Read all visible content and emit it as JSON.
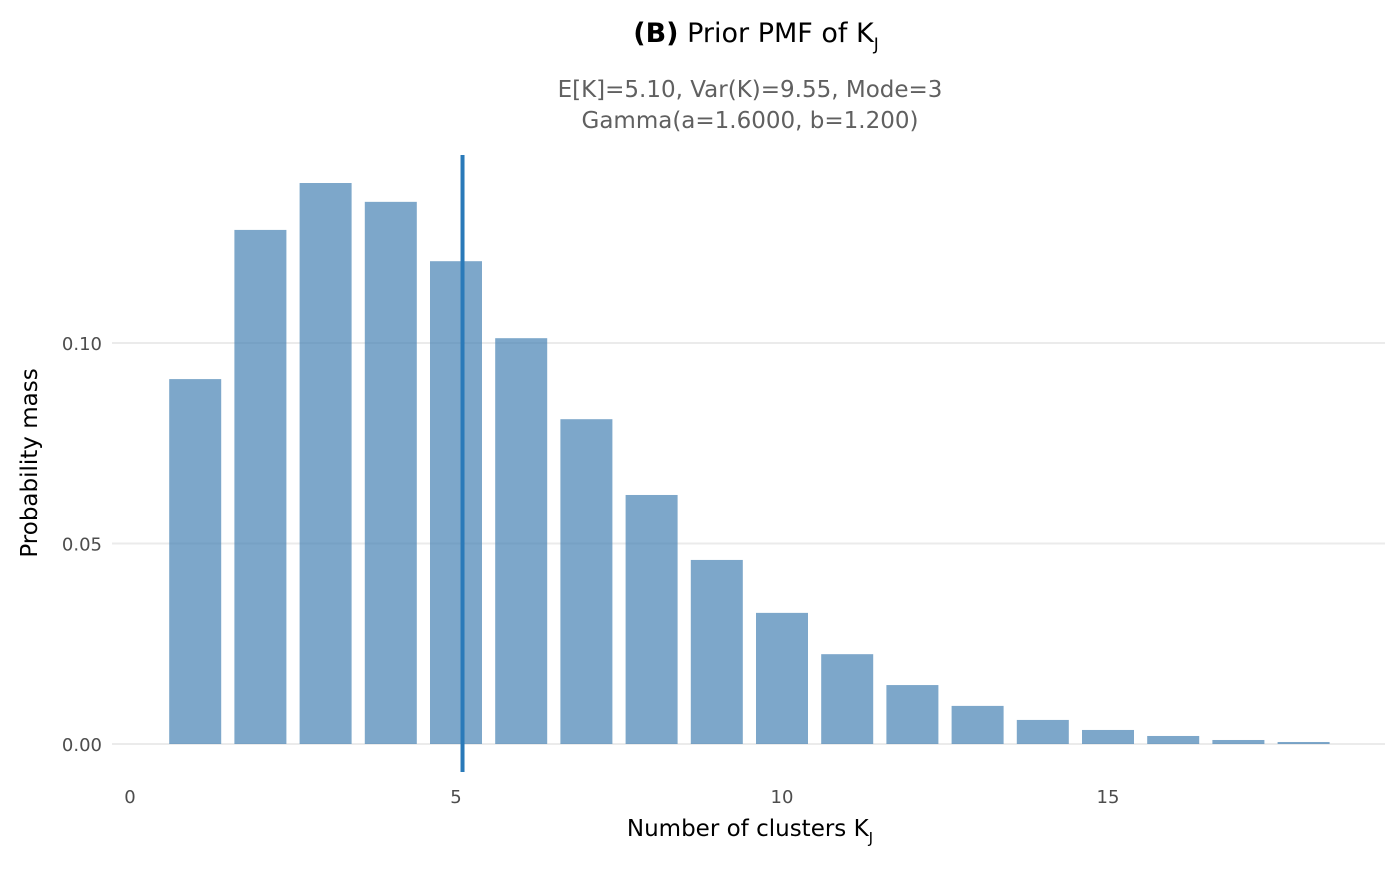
{
  "chart_data": {
    "type": "bar",
    "title_prefix": "(B)",
    "title_main": "Prior PMF of K",
    "title_subscript": "J",
    "subtitle_line1": "E[K]=5.10,  Var(K)=9.55,  Mode=3",
    "subtitle_line2": "Gamma(a=1.6000, b=1.200)",
    "xlabel_main": "Number of clusters K",
    "xlabel_subscript": "J",
    "ylabel": "Probability mass",
    "x": [
      1,
      2,
      3,
      4,
      5,
      6,
      7,
      8,
      9,
      10,
      11,
      12,
      13,
      14,
      15,
      16,
      17,
      18
    ],
    "values": [
      0.091,
      0.1282,
      0.1399,
      0.1352,
      0.1204,
      0.1012,
      0.081,
      0.0621,
      0.0459,
      0.0327,
      0.0224,
      0.0147,
      0.0095,
      0.006,
      0.0035,
      0.002,
      0.001,
      0.0005
    ],
    "mean_line": 5.1,
    "xlim": [
      -0.3,
      19.5
    ],
    "ylim": [
      -0.007,
      0.147
    ],
    "xticks": [
      {
        "v": 0,
        "label": "0"
      },
      {
        "v": 5,
        "label": "5"
      },
      {
        "v": 10,
        "label": "10"
      },
      {
        "v": 15,
        "label": "15"
      }
    ],
    "yticks": [
      {
        "v": 0,
        "label": "0.00"
      },
      {
        "v": 0.05,
        "label": "0.05"
      },
      {
        "v": 0.1,
        "label": "0.10"
      }
    ],
    "grid": true,
    "bar_color": "#4682b4",
    "line_color": "#2a7ab9"
  }
}
